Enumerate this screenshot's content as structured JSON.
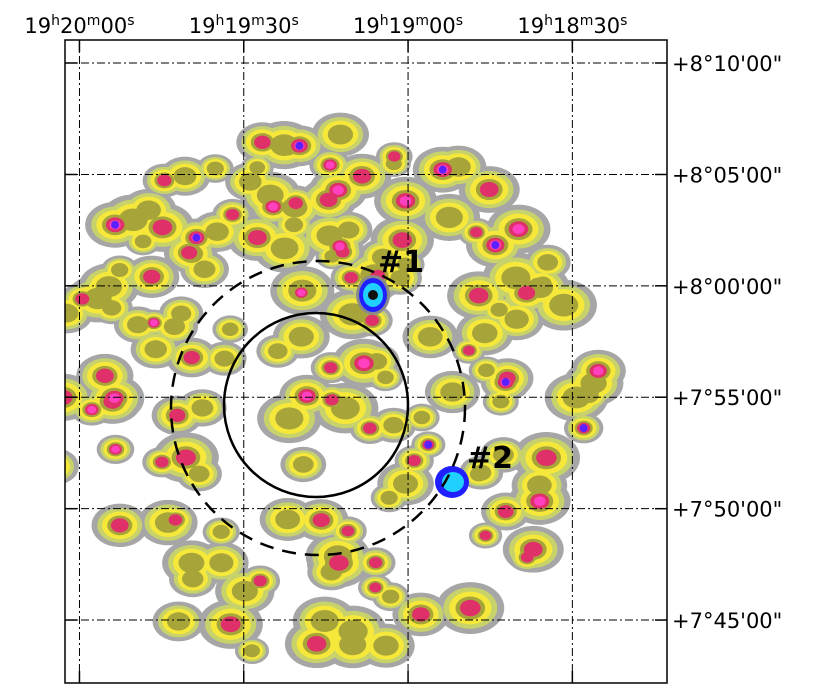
{
  "chart_data": {
    "type": "map",
    "xticks": [
      {
        "value": 290.0,
        "label": "19h20m00s"
      },
      {
        "value": 289.875,
        "label": "19h19m30s"
      },
      {
        "value": 289.75,
        "label": "19h19m00s"
      },
      {
        "value": 289.625,
        "label": "19h18m30s"
      }
    ],
    "xlim": [
      290.011,
      289.553
    ],
    "yticks": [
      {
        "value": 8.1667,
        "label": "+8°10'00\""
      },
      {
        "value": 8.0833,
        "label": "+8°05'00\""
      },
      {
        "value": 8.0,
        "label": "+8°00'00\""
      },
      {
        "value": 7.9167,
        "label": "+7°55'00\""
      },
      {
        "value": 7.8333,
        "label": "+7°50'00\""
      },
      {
        "value": 7.75,
        "label": "+7°45'00\""
      }
    ],
    "ylim": [
      7.7029,
      8.1839
    ],
    "grid": true,
    "annotations": [
      "#1",
      "#2"
    ]
  }
}
